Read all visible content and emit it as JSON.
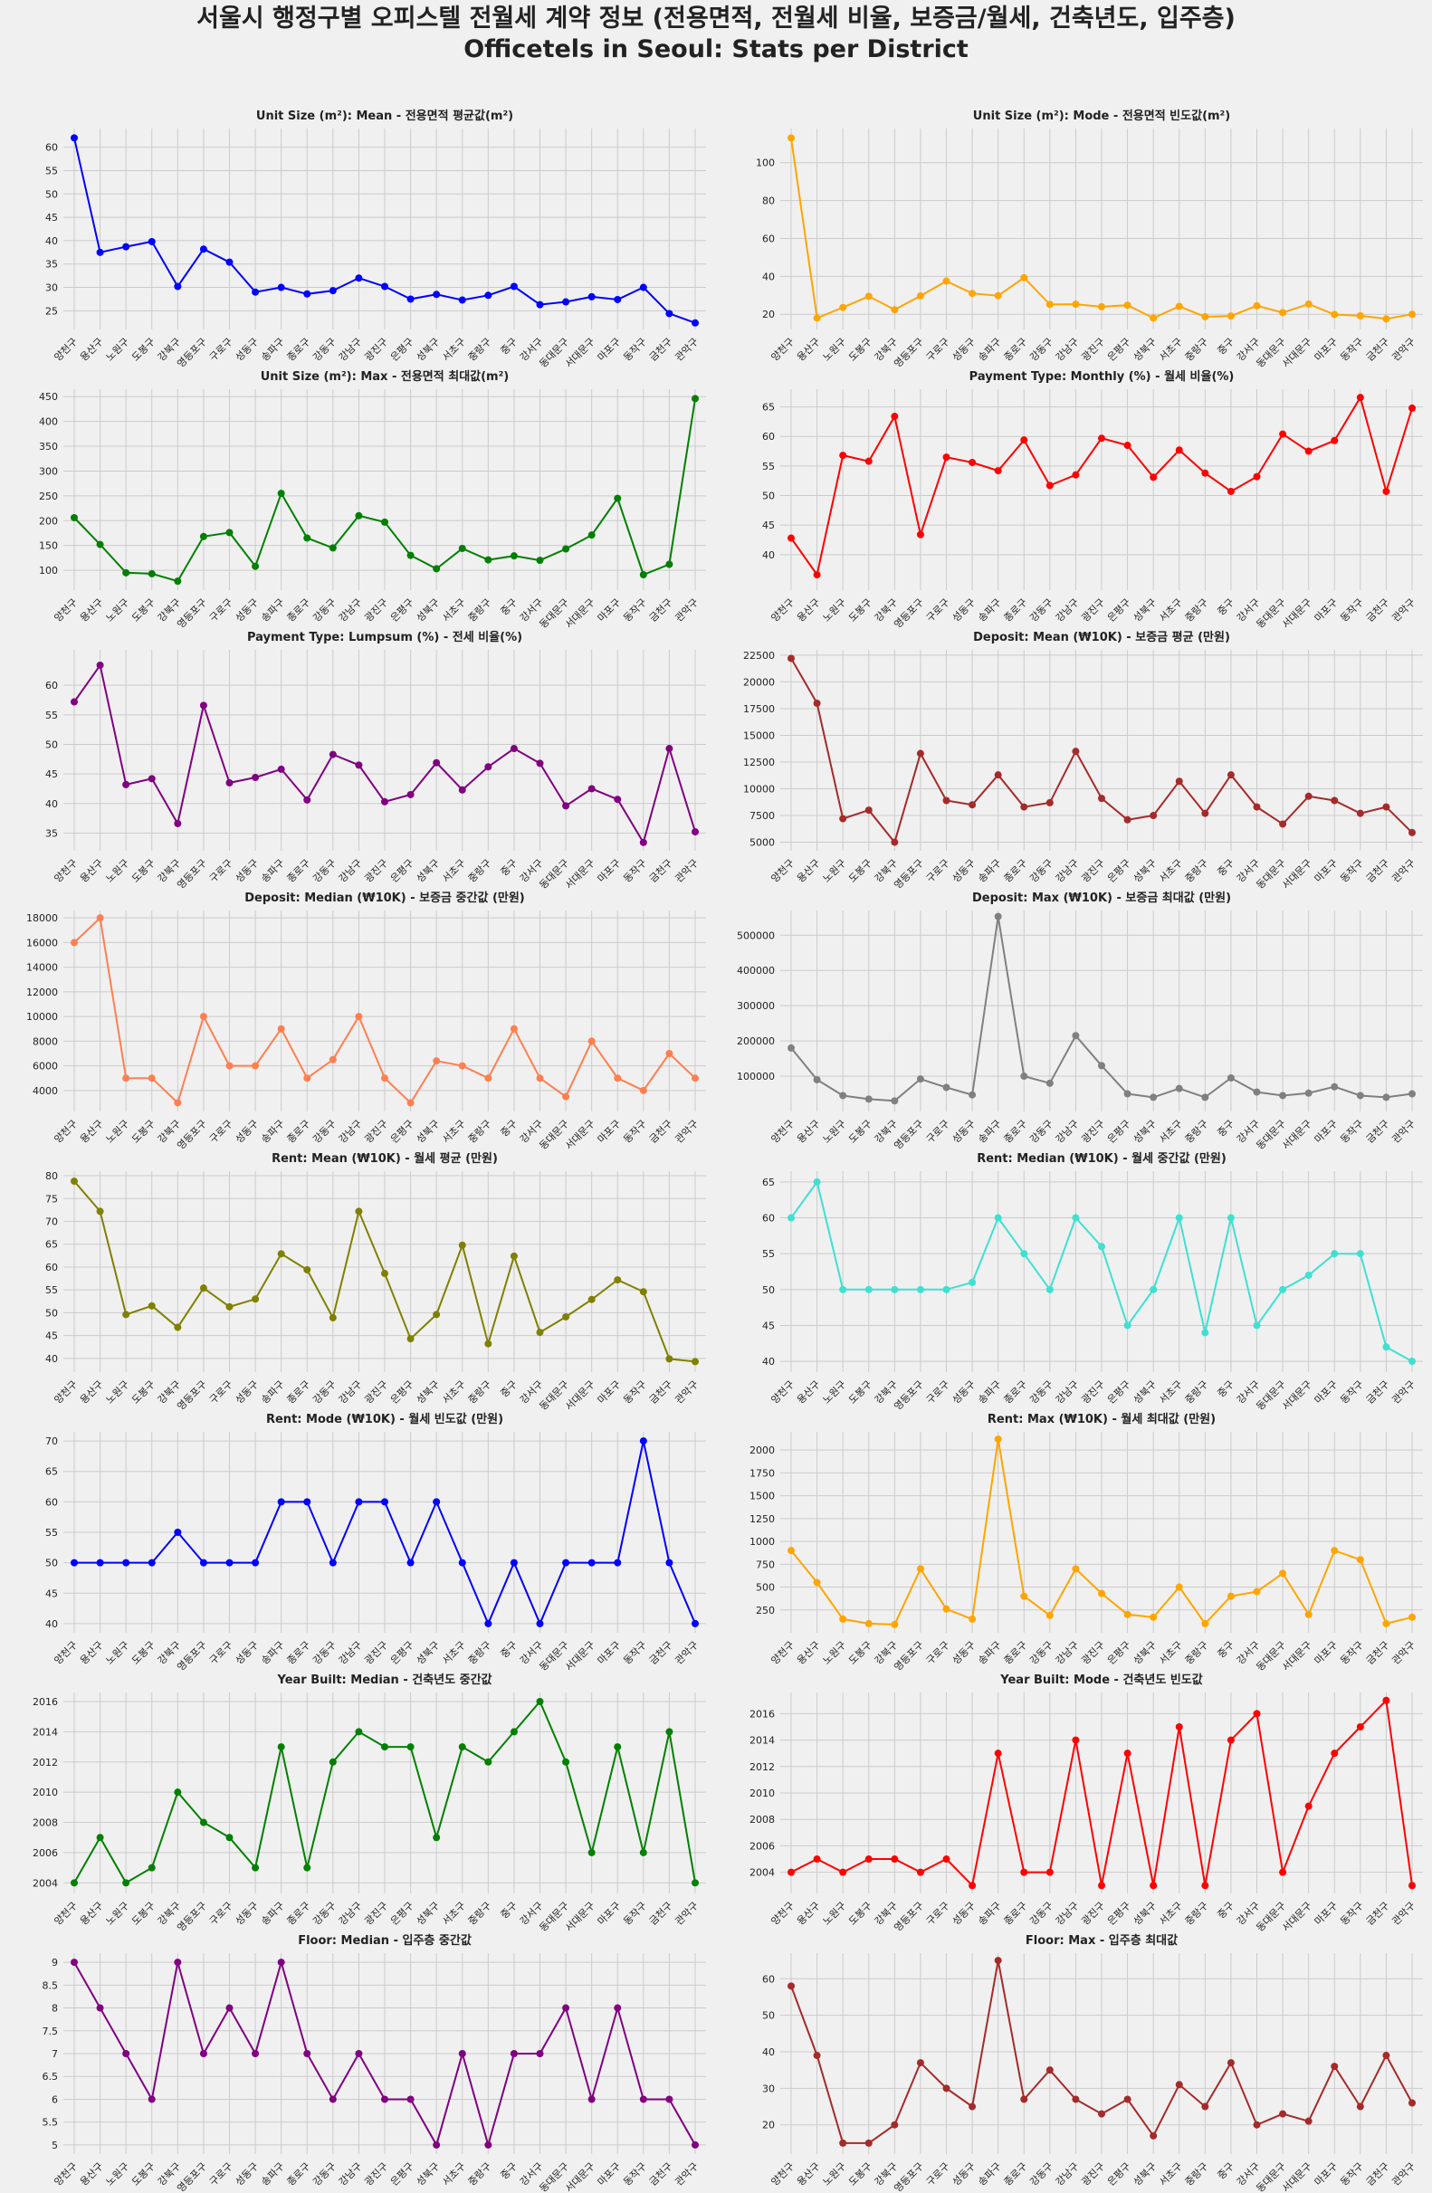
{
  "page": {
    "title_line1": "서울시 행정구별 오피스텔 전월세 계약 정보 (전용면적, 전월세 비율, 보증금/월세, 건축년도, 입주층)",
    "title_line2": "Officetels in Seoul: Stats per District"
  },
  "chart_data": [
    {
      "type": "line",
      "title": "Unit Size (m²): Mean - 전용면적 평균값(m²)",
      "color": "#0000ff",
      "yticks": [
        25,
        30,
        35,
        40,
        45,
        50,
        55,
        60
      ],
      "ylim": [
        21,
        64
      ],
      "categories": [
        "양천구",
        "용산구",
        "노원구",
        "도봉구",
        "강북구",
        "영등포구",
        "구로구",
        "성동구",
        "송파구",
        "종로구",
        "강동구",
        "강남구",
        "광진구",
        "은평구",
        "성북구",
        "서초구",
        "중랑구",
        "중구",
        "강서구",
        "동대문구",
        "서대문구",
        "마포구",
        "동작구",
        "금천구",
        "관악구"
      ],
      "values": [
        62,
        37.5,
        38.7,
        39.8,
        30.2,
        38.2,
        35.4,
        29,
        30,
        28.6,
        29.3,
        32,
        30.2,
        27.5,
        28.5,
        27.3,
        28.3,
        30.2,
        26.3,
        26.9,
        28,
        27.4,
        30,
        24.4,
        22.4
      ]
    },
    {
      "type": "line",
      "title": "Unit Size (m²): Mode - 전용면적 빈도값(m²)",
      "color": "#ffa500",
      "yticks": [
        20,
        40,
        60,
        80,
        100
      ],
      "ylim": [
        12,
        118
      ],
      "categories": [
        "양천구",
        "용산구",
        "노원구",
        "도봉구",
        "강북구",
        "영등포구",
        "구로구",
        "성동구",
        "송파구",
        "종로구",
        "강동구",
        "강남구",
        "광진구",
        "은평구",
        "성북구",
        "서초구",
        "중랑구",
        "중구",
        "강서구",
        "동대문구",
        "서대문구",
        "마포구",
        "동작구",
        "금천구",
        "관악구"
      ],
      "values": [
        113,
        18,
        23.6,
        29.5,
        22.4,
        29.7,
        37.5,
        31,
        29.8,
        39.3,
        25.2,
        25.3,
        24,
        24.8,
        18,
        24.2,
        18.7,
        19.1,
        24.5,
        20.9,
        25.4,
        19.9,
        19.2,
        17.6,
        20
      ]
    },
    {
      "type": "line",
      "title": "Unit Size (m²): Max - 전용면적 최대값(m²)",
      "color": "#008000",
      "yticks": [
        100,
        150,
        200,
        250,
        300,
        350,
        400,
        450
      ],
      "ylim": [
        60,
        465
      ],
      "categories": [
        "양천구",
        "용산구",
        "노원구",
        "도봉구",
        "강북구",
        "영등포구",
        "구로구",
        "성동구",
        "송파구",
        "종로구",
        "강동구",
        "강남구",
        "광진구",
        "은평구",
        "성북구",
        "서초구",
        "중랑구",
        "중구",
        "강서구",
        "동대문구",
        "서대문구",
        "마포구",
        "동작구",
        "금천구",
        "관악구"
      ],
      "values": [
        206,
        152,
        95,
        93,
        78,
        168,
        176,
        108,
        255,
        165,
        145,
        210,
        197,
        130,
        103,
        144,
        121,
        129,
        120,
        143,
        171,
        245,
        91,
        112,
        446
      ]
    },
    {
      "type": "line",
      "title": "Payment Type: Monthly (%) - 월세 비율(%)",
      "color": "#ff0000",
      "yticks": [
        40,
        45,
        50,
        55,
        60,
        65
      ],
      "ylim": [
        34,
        68
      ],
      "categories": [
        "양천구",
        "용산구",
        "노원구",
        "도봉구",
        "강북구",
        "영등포구",
        "구로구",
        "성동구",
        "송파구",
        "종로구",
        "강동구",
        "강남구",
        "광진구",
        "은평구",
        "성북구",
        "서초구",
        "중랑구",
        "중구",
        "강서구",
        "동대문구",
        "서대문구",
        "마포구",
        "동작구",
        "금천구",
        "관악구"
      ],
      "values": [
        42.8,
        36.6,
        56.8,
        55.8,
        63.4,
        43.4,
        56.5,
        55.6,
        54.2,
        59.4,
        51.7,
        53.5,
        59.7,
        58.5,
        53.1,
        57.7,
        53.8,
        50.7,
        53.2,
        60.4,
        57.5,
        59.3,
        66.6,
        50.7,
        64.8
      ]
    },
    {
      "type": "line",
      "title": "Payment Type: Lumpsum (%) - 전세 비율(%)",
      "color": "#800080",
      "yticks": [
        35,
        40,
        45,
        50,
        55,
        60
      ],
      "ylim": [
        32,
        66
      ],
      "categories": [
        "양천구",
        "용산구",
        "노원구",
        "도봉구",
        "강북구",
        "영등포구",
        "구로구",
        "성동구",
        "송파구",
        "종로구",
        "강동구",
        "강남구",
        "광진구",
        "은평구",
        "성북구",
        "서초구",
        "중랑구",
        "중구",
        "강서구",
        "동대문구",
        "서대문구",
        "마포구",
        "동작구",
        "금천구",
        "관악구"
      ],
      "values": [
        57.2,
        63.4,
        43.2,
        44.2,
        36.6,
        56.6,
        43.5,
        44.4,
        45.8,
        40.6,
        48.3,
        46.5,
        40.3,
        41.5,
        46.9,
        42.3,
        46.2,
        49.3,
        46.8,
        39.6,
        42.5,
        40.7,
        33.4,
        49.3,
        35.2
      ]
    },
    {
      "type": "line",
      "title": "Deposit: Mean (₩10K) - 보증금 평균 (만원)",
      "color": "#a52a2a",
      "yticks": [
        5000,
        7500,
        10000,
        12500,
        15000,
        17500,
        20000,
        22500
      ],
      "ylim": [
        4200,
        23000
      ],
      "categories": [
        "양천구",
        "용산구",
        "노원구",
        "도봉구",
        "강북구",
        "영등포구",
        "구로구",
        "성동구",
        "송파구",
        "종로구",
        "강동구",
        "강남구",
        "광진구",
        "은평구",
        "성북구",
        "서초구",
        "중랑구",
        "중구",
        "강서구",
        "동대문구",
        "서대문구",
        "마포구",
        "동작구",
        "금천구",
        "관악구"
      ],
      "values": [
        22200,
        18000,
        7200,
        8000,
        5000,
        13300,
        8900,
        8500,
        11300,
        8300,
        8700,
        13500,
        9100,
        7100,
        7500,
        10700,
        7700,
        11300,
        8300,
        6700,
        9300,
        8900,
        7700,
        8300,
        5900
      ]
    },
    {
      "type": "line",
      "title": "Deposit: Median (₩10K) - 보증금 중간값 (만원)",
      "color": "#ff7f50",
      "yticks": [
        4000,
        6000,
        8000,
        10000,
        12000,
        14000,
        16000,
        18000
      ],
      "ylim": [
        2300,
        18600
      ],
      "categories": [
        "양천구",
        "용산구",
        "노원구",
        "도봉구",
        "강북구",
        "영등포구",
        "구로구",
        "성동구",
        "송파구",
        "종로구",
        "강동구",
        "강남구",
        "광진구",
        "은평구",
        "성북구",
        "서초구",
        "중랑구",
        "중구",
        "강서구",
        "동대문구",
        "서대문구",
        "마포구",
        "동작구",
        "금천구",
        "관악구"
      ],
      "values": [
        16000,
        18000,
        5000,
        5000,
        3000,
        10000,
        6000,
        6000,
        9000,
        5000,
        6500,
        10000,
        5000,
        3000,
        6400,
        6000,
        5000,
        9000,
        5000,
        3500,
        8000,
        5000,
        4000,
        7000,
        5000
      ]
    },
    {
      "type": "line",
      "title": "Deposit: Max (₩10K) - 보증금 최대값 (만원)",
      "color": "#808080",
      "yticks": [
        100000,
        200000,
        300000,
        400000,
        500000
      ],
      "ylim": [
        0,
        570000
      ],
      "categories": [
        "양천구",
        "용산구",
        "노원구",
        "도봉구",
        "강북구",
        "영등포구",
        "구로구",
        "성동구",
        "송파구",
        "종로구",
        "강동구",
        "강남구",
        "광진구",
        "은평구",
        "성북구",
        "서초구",
        "중랑구",
        "중구",
        "강서구",
        "동대문구",
        "서대문구",
        "마포구",
        "동작구",
        "금천구",
        "관악구"
      ],
      "values": [
        180000,
        90000,
        45000,
        35000,
        30000,
        92000,
        68000,
        47000,
        553000,
        100000,
        80000,
        215000,
        130000,
        50000,
        40000,
        65000,
        40000,
        95000,
        55000,
        45000,
        52000,
        70000,
        45000,
        40000,
        50000
      ]
    },
    {
      "type": "line",
      "title": "Rent: Mean (₩10K) - 월세 평균 (만원)",
      "color": "#808000",
      "yticks": [
        40,
        45,
        50,
        55,
        60,
        65,
        70,
        75,
        80
      ],
      "ylim": [
        37,
        81
      ],
      "categories": [
        "양천구",
        "용산구",
        "노원구",
        "도봉구",
        "강북구",
        "영등포구",
        "구로구",
        "성동구",
        "송파구",
        "종로구",
        "강동구",
        "강남구",
        "광진구",
        "은평구",
        "성북구",
        "서초구",
        "중랑구",
        "중구",
        "강서구",
        "동대문구",
        "서대문구",
        "마포구",
        "동작구",
        "금천구",
        "관악구"
      ],
      "values": [
        78.8,
        72.2,
        49.6,
        51.5,
        46.8,
        55.4,
        51.3,
        53,
        62.9,
        59.4,
        48.9,
        72.2,
        58.6,
        44.3,
        49.6,
        64.8,
        43.2,
        62.4,
        45.7,
        49.1,
        52.9,
        57.2,
        54.6,
        39.9,
        39.3
      ]
    },
    {
      "type": "line",
      "title": "Rent: Median (₩10K) - 월세 중간값 (만원)",
      "color": "#40e0d0",
      "yticks": [
        40,
        45,
        50,
        55,
        60,
        65
      ],
      "ylim": [
        38.5,
        66.5
      ],
      "categories": [
        "양천구",
        "용산구",
        "노원구",
        "도봉구",
        "강북구",
        "영등포구",
        "구로구",
        "성동구",
        "송파구",
        "종로구",
        "강동구",
        "강남구",
        "광진구",
        "은평구",
        "성북구",
        "서초구",
        "중랑구",
        "중구",
        "강서구",
        "동대문구",
        "서대문구",
        "마포구",
        "동작구",
        "금천구",
        "관악구"
      ],
      "values": [
        60,
        65,
        50,
        50,
        50,
        50,
        50,
        51,
        60,
        55,
        50,
        60,
        56,
        45,
        50,
        60,
        44,
        60,
        45,
        50,
        52,
        55,
        55,
        42,
        40
      ]
    },
    {
      "type": "line",
      "title": "Rent: Mode (₩10K) - 월세 빈도값 (만원)",
      "color": "#0000ff",
      "yticks": [
        40,
        45,
        50,
        55,
        60,
        65,
        70
      ],
      "ylim": [
        38.5,
        71.5
      ],
      "categories": [
        "양천구",
        "용산구",
        "노원구",
        "도봉구",
        "강북구",
        "영등포구",
        "구로구",
        "성동구",
        "송파구",
        "종로구",
        "강동구",
        "강남구",
        "광진구",
        "은평구",
        "성북구",
        "서초구",
        "중랑구",
        "중구",
        "강서구",
        "동대문구",
        "서대문구",
        "마포구",
        "동작구",
        "금천구",
        "관악구"
      ],
      "values": [
        50,
        50,
        50,
        50,
        55,
        50,
        50,
        50,
        60,
        60,
        50,
        60,
        60,
        50,
        60,
        50,
        40,
        50,
        40,
        50,
        50,
        50,
        70,
        50,
        40
      ]
    },
    {
      "type": "line",
      "title": "Rent: Max (₩10K) - 월세 최대값 (만원)",
      "color": "#ffa500",
      "yticks": [
        250,
        500,
        750,
        1000,
        1250,
        1500,
        1750,
        2000
      ],
      "ylim": [
        0,
        2200
      ],
      "categories": [
        "양천구",
        "용산구",
        "노원구",
        "도봉구",
        "강북구",
        "영등포구",
        "구로구",
        "성동구",
        "송파구",
        "종로구",
        "강동구",
        "강남구",
        "광진구",
        "은평구",
        "성북구",
        "서초구",
        "중랑구",
        "중구",
        "강서구",
        "동대문구",
        "서대문구",
        "마포구",
        "동작구",
        "금천구",
        "관악구"
      ],
      "values": [
        900,
        550,
        150,
        100,
        90,
        700,
        260,
        150,
        2120,
        400,
        190,
        700,
        430,
        200,
        170,
        500,
        100,
        400,
        450,
        650,
        200,
        900,
        800,
        100,
        170
      ]
    },
    {
      "type": "line",
      "title": "Year Built: Median - 건축년도 중간값",
      "color": "#008000",
      "yticks": [
        2004,
        2006,
        2008,
        2010,
        2012,
        2014,
        2016
      ],
      "ylim": [
        2003.3,
        2016.6
      ],
      "categories": [
        "양천구",
        "용산구",
        "노원구",
        "도봉구",
        "강북구",
        "영등포구",
        "구로구",
        "성동구",
        "송파구",
        "종로구",
        "강동구",
        "강남구",
        "광진구",
        "은평구",
        "성북구",
        "서초구",
        "중랑구",
        "중구",
        "강서구",
        "동대문구",
        "서대문구",
        "마포구",
        "동작구",
        "금천구",
        "관악구"
      ],
      "values": [
        2004,
        2007,
        2004,
        2005,
        2010,
        2008,
        2007,
        2005,
        2013,
        2005,
        2012,
        2014,
        2013,
        2013,
        2007,
        2013,
        2012,
        2014,
        2016,
        2012,
        2006,
        2013,
        2006,
        2014,
        2004
      ]
    },
    {
      "type": "line",
      "title": "Year Built: Mode - 건축년도 빈도값",
      "color": "#ff0000",
      "yticks": [
        2004,
        2006,
        2008,
        2010,
        2012,
        2014,
        2016
      ],
      "ylim": [
        2002.4,
        2017.6
      ],
      "categories": [
        "양천구",
        "용산구",
        "노원구",
        "도봉구",
        "강북구",
        "영등포구",
        "구로구",
        "성동구",
        "송파구",
        "종로구",
        "강동구",
        "강남구",
        "광진구",
        "은평구",
        "성북구",
        "서초구",
        "중랑구",
        "중구",
        "강서구",
        "동대문구",
        "서대문구",
        "마포구",
        "동작구",
        "금천구",
        "관악구"
      ],
      "values": [
        2004,
        2005,
        2004,
        2005,
        2005,
        2004,
        2005,
        2003,
        2013,
        2004,
        2004,
        2014,
        2003,
        2013,
        2003,
        2015,
        2003,
        2014,
        2016,
        2004,
        2009,
        2013,
        2015,
        2017,
        2003
      ]
    },
    {
      "type": "line",
      "title": "Floor: Median - 입주층 중간값",
      "color": "#800080",
      "yticks": [
        5.0,
        5.5,
        6.0,
        6.5,
        7.0,
        7.5,
        8.0,
        8.5,
        9.0
      ],
      "ylim": [
        4.8,
        9.2
      ],
      "categories": [
        "양천구",
        "용산구",
        "노원구",
        "도봉구",
        "강북구",
        "영등포구",
        "구로구",
        "성동구",
        "송파구",
        "종로구",
        "강동구",
        "강남구",
        "광진구",
        "은평구",
        "성북구",
        "서초구",
        "중랑구",
        "중구",
        "강서구",
        "동대문구",
        "서대문구",
        "마포구",
        "동작구",
        "금천구",
        "관악구"
      ],
      "values": [
        9,
        8,
        7,
        6,
        9,
        7,
        8,
        7,
        9,
        7,
        6,
        7,
        6,
        6,
        5,
        7,
        5,
        7,
        7,
        8,
        6,
        8,
        6,
        6,
        5
      ]
    },
    {
      "type": "line",
      "title": "Floor: Max - 입주층 최대값",
      "color": "#a52a2a",
      "yticks": [
        20,
        30,
        40,
        50,
        60
      ],
      "ylim": [
        12,
        67
      ],
      "categories": [
        "양천구",
        "용산구",
        "노원구",
        "도봉구",
        "강북구",
        "영등포구",
        "구로구",
        "성동구",
        "송파구",
        "종로구",
        "강동구",
        "강남구",
        "광진구",
        "은평구",
        "성북구",
        "서초구",
        "중랑구",
        "중구",
        "강서구",
        "동대문구",
        "서대문구",
        "마포구",
        "동작구",
        "금천구",
        "관악구"
      ],
      "values": [
        58,
        39,
        15,
        15,
        20,
        37,
        30,
        25,
        65,
        27,
        35,
        27,
        23,
        27,
        17,
        31,
        25,
        37,
        20,
        23,
        21,
        36,
        25,
        39,
        26
      ]
    }
  ]
}
